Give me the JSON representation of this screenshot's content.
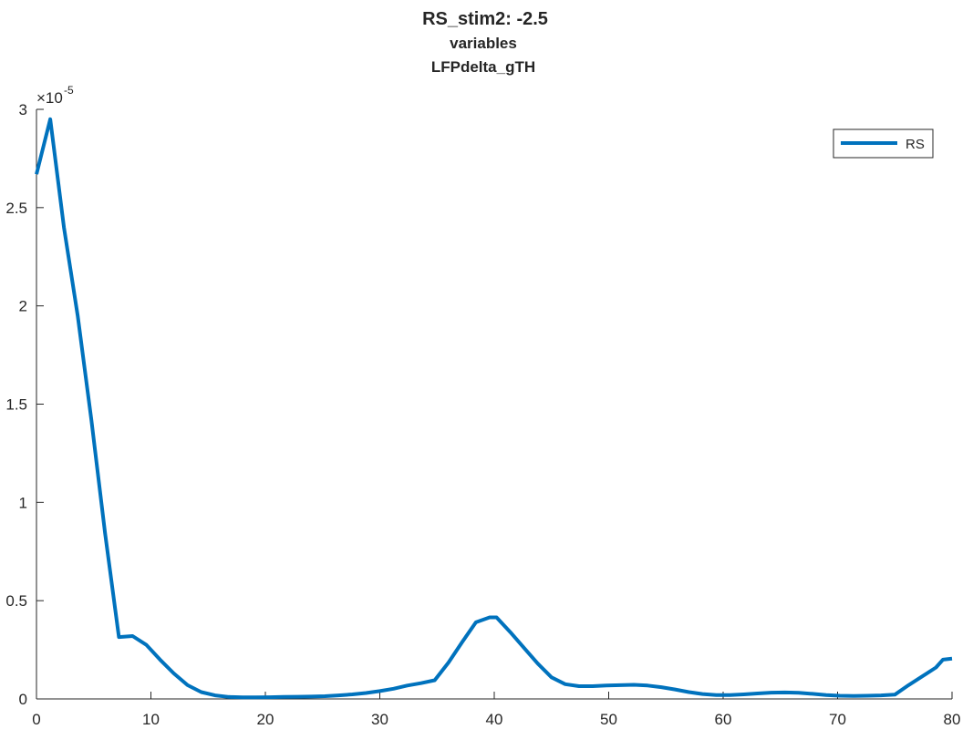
{
  "chart_data": {
    "type": "line",
    "title": "RS_stim2: -2.5",
    "subtitle_lines": [
      "variables",
      "LFPdelta_gTH"
    ],
    "xlabel": "",
    "ylabel": "",
    "xlim": [
      0,
      80
    ],
    "ylim": [
      0,
      3e-05
    ],
    "x_ticks": [
      "0",
      "10",
      "20",
      "30",
      "40",
      "50",
      "60",
      "70",
      "80"
    ],
    "y_ticks": [
      "0",
      "0.5",
      "1",
      "1.5",
      "2",
      "2.5",
      "3"
    ],
    "y_exponent_prefix": "×10",
    "y_exponent_power": "-5",
    "grid": false,
    "legend_position": "top-right",
    "colors": {
      "series": "#0072BD",
      "axis": "#262626"
    },
    "series": [
      {
        "name": "RS",
        "x": [
          0,
          1.2,
          2.4,
          3.6,
          4.8,
          6.0,
          7.2,
          8.4,
          9.6,
          10.8,
          12.0,
          13.2,
          14.4,
          15.6,
          16.8,
          18.0,
          19.2,
          20.4,
          21.6,
          22.8,
          24.0,
          25.2,
          26.4,
          27.6,
          28.8,
          30.0,
          31.2,
          32.4,
          33.6,
          34.8,
          36.0,
          37.2,
          38.4,
          39.6,
          40.2,
          41.4,
          42.6,
          43.8,
          45.0,
          46.2,
          47.4,
          48.6,
          49.8,
          51.0,
          52.2,
          53.4,
          54.6,
          55.8,
          57.0,
          58.2,
          59.4,
          60.6,
          61.8,
          63.0,
          64.2,
          65.4,
          66.6,
          67.8,
          69.0,
          70.2,
          71.4,
          72.6,
          73.8,
          75.0,
          76.2,
          77.4,
          78.6,
          79.2,
          80.0
        ],
        "y": [
          2.67e-05,
          2.95e-05,
          2.4e-05,
          1.95e-05,
          1.42e-05,
          8.4e-06,
          3.15e-06,
          3.2e-06,
          2.75e-06,
          2e-06,
          1.3e-06,
          7e-07,
          3.5e-07,
          1.8e-07,
          1e-07,
          8e-08,
          8e-08,
          9e-08,
          1e-07,
          1.1e-07,
          1.2e-07,
          1.4e-07,
          1.8e-07,
          2.3e-07,
          3e-07,
          4e-07,
          5.2e-07,
          6.8e-07,
          8e-07,
          9.5e-07,
          1.85e-06,
          2.9e-06,
          3.9e-06,
          4.15e-06,
          4.15e-06,
          3.4e-06,
          2.6e-06,
          1.8e-06,
          1.1e-06,
          7.5e-07,
          6.5e-07,
          6.5e-07,
          6.8e-07,
          7e-07,
          7.2e-07,
          6.8e-07,
          6e-07,
          4.8e-07,
          3.5e-07,
          2.5e-07,
          2e-07,
          2e-07,
          2.3e-07,
          2.8e-07,
          3.2e-07,
          3.3e-07,
          3.1e-07,
          2.6e-07,
          2e-07,
          1.6e-07,
          1.5e-07,
          1.6e-07,
          1.8e-07,
          2.2e-07,
          7e-07,
          1.15e-06,
          1.6e-06,
          2e-06,
          2.05e-06
        ]
      }
    ]
  }
}
